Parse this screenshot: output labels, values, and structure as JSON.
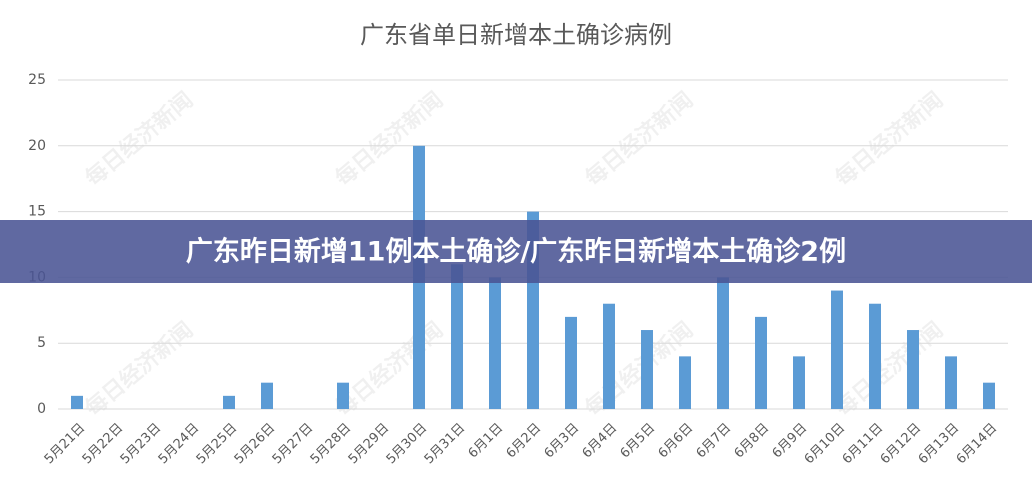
{
  "chart_data": {
    "type": "bar",
    "title": "广东省单日新增本土确诊病例",
    "categories": [
      "5月21日",
      "5月22日",
      "5月23日",
      "5月24日",
      "5月25日",
      "5月26日",
      "5月27日",
      "5月28日",
      "5月29日",
      "5月30日",
      "5月31日",
      "6月1日",
      "6月2日",
      "6月3日",
      "6月4日",
      "6月5日",
      "6月6日",
      "6月7日",
      "6月8日",
      "6月9日",
      "6月10日",
      "6月11日",
      "6月12日",
      "6月13日",
      "6月14日"
    ],
    "values": [
      1,
      0,
      0,
      0,
      1,
      2,
      0,
      2,
      0,
      20,
      11,
      10,
      15,
      7,
      8,
      6,
      4,
      10,
      7,
      4,
      9,
      8,
      6,
      4,
      2
    ],
    "color": "#5b9bd5",
    "ylim": [
      0,
      25
    ],
    "yticks": [
      0,
      5,
      10,
      15,
      20,
      25
    ],
    "grid": true
  },
  "banner": {
    "text": "广东昨日新增11例本土确诊/广东昨日新增本土确诊2例"
  },
  "watermark": "每日经济新闻"
}
